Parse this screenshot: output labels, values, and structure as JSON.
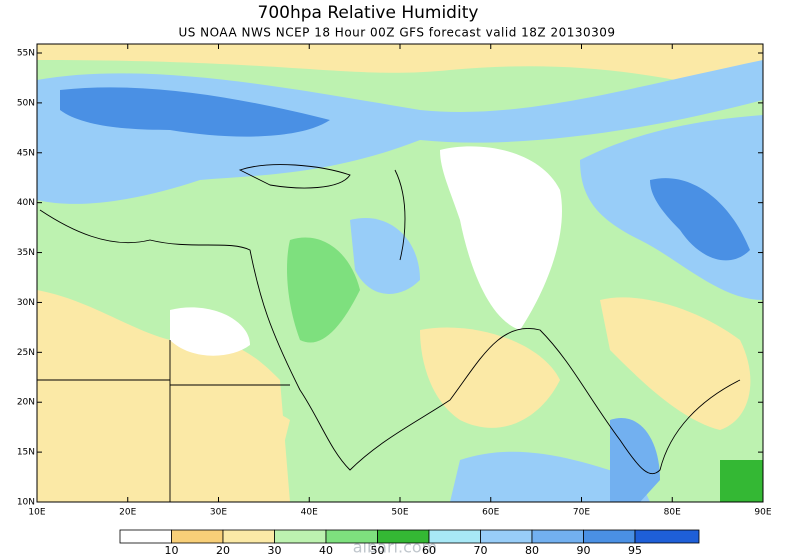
{
  "header": {
    "title": "700hpa Relative Humidity",
    "subtitle": "US NOAA NWS NCEP 18 Hour 00Z GFS forecast valid 18Z 20130309"
  },
  "map": {
    "lon_labels": [
      "10E",
      "20E",
      "30E",
      "40E",
      "50E",
      "60E",
      "70E",
      "80E",
      "90E"
    ],
    "lat_labels": [
      "10N",
      "15N",
      "20N",
      "25N",
      "30N",
      "35N",
      "40N",
      "45N",
      "50N",
      "55N"
    ]
  },
  "colorbar": {
    "labels": [
      10,
      20,
      30,
      40,
      50,
      60,
      70,
      80,
      90,
      95
    ],
    "colors": [
      "#ffffff",
      "#f8cf78",
      "#fbe9a6",
      "#bdf2b0",
      "#7ee07e",
      "#34b834",
      "#a8e8f6",
      "#98cdf8",
      "#72b0f0",
      "#4a90e4",
      "#1e5fd8"
    ]
  },
  "watermark": "albari.com"
}
